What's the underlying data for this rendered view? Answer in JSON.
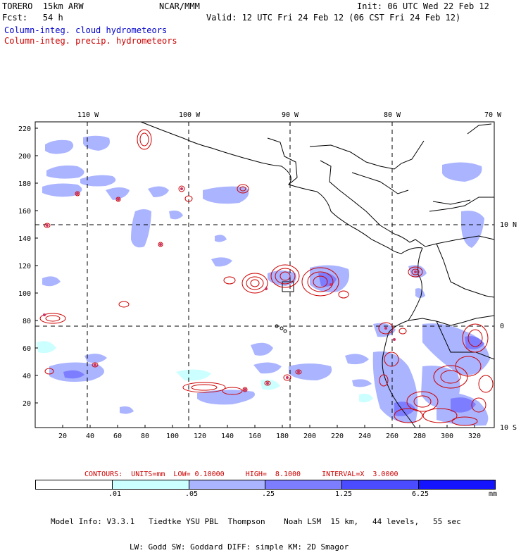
{
  "header": {
    "model": "TORERO  15km ARW",
    "center": "NCAR/MMM",
    "init": "Init: 06 UTC Wed 22 Feb 12",
    "fcst": "Fcst:   54 h",
    "valid": "Valid: 12 UTC Fri 24 Feb 12 (06 CST Fri 24 Feb 12)",
    "field_cloud": "Column-integ. cloud hydrometeors",
    "field_precip": "Column-integ. precip. hydrometeors"
  },
  "colors": {
    "cloud_field": "#0000cc",
    "precip_field": "#cc0000",
    "coast": "#000000",
    "shade_levels": [
      "#ffffff",
      "#ccffff",
      "#aab4ff",
      "#7d7dff",
      "#4b4bff",
      "#1414ff"
    ]
  },
  "axes": {
    "top_lon_labels": [
      "110 W",
      "100 W",
      "90 W",
      "80 W",
      "70 W"
    ],
    "right_lat_labels": [
      "10 N",
      "0",
      "10 S"
    ],
    "left_ticks": [
      "220",
      "200",
      "180",
      "160",
      "140",
      "120",
      "100",
      "80",
      "60",
      "40",
      "20"
    ],
    "bottom_ticks": [
      "20",
      "40",
      "60",
      "80",
      "100",
      "120",
      "140",
      "160",
      "180",
      "200",
      "220",
      "240",
      "260",
      "280",
      "300",
      "320"
    ]
  },
  "contour_info": "CONTOURS:  UNITS=mm  LOW= 0.10000     HIGH=  8.1000     INTERVAL=X  3.0000",
  "legend": {
    "labels": [
      ".01",
      ".05",
      ".25",
      "1.25",
      "6.25"
    ],
    "unit": "mm"
  },
  "footer": {
    "line1": "Model Info: V3.3.1   Tiedtke YSU PBL  Thompson    Noah LSM  15 km,   44 levels,   55 sec",
    "line2": "LW: Godd SW: Goddard DIFF: simple KM: 2D Smagor"
  }
}
